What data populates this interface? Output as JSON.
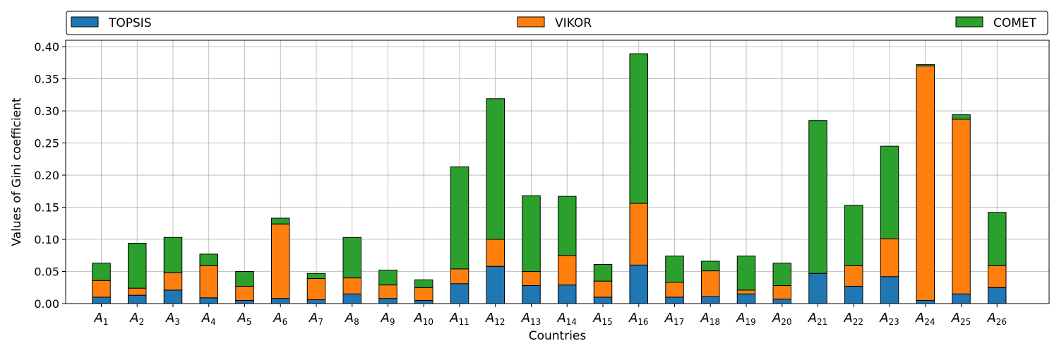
{
  "chart_data": {
    "type": "bar",
    "stacked": true,
    "categories": [
      "A1",
      "A2",
      "A3",
      "A4",
      "A5",
      "A6",
      "A7",
      "A8",
      "A9",
      "A10",
      "A11",
      "A12",
      "A13",
      "A14",
      "A15",
      "A16",
      "A17",
      "A18",
      "A19",
      "A20",
      "A21",
      "A22",
      "A23",
      "A24",
      "A25",
      "A26"
    ],
    "category_labels": [
      {
        "base": "A",
        "sub": "1"
      },
      {
        "base": "A",
        "sub": "2"
      },
      {
        "base": "A",
        "sub": "3"
      },
      {
        "base": "A",
        "sub": "4"
      },
      {
        "base": "A",
        "sub": "5"
      },
      {
        "base": "A",
        "sub": "6"
      },
      {
        "base": "A",
        "sub": "7"
      },
      {
        "base": "A",
        "sub": "8"
      },
      {
        "base": "A",
        "sub": "9"
      },
      {
        "base": "A",
        "sub": "10"
      },
      {
        "base": "A",
        "sub": "11"
      },
      {
        "base": "A",
        "sub": "12"
      },
      {
        "base": "A",
        "sub": "13"
      },
      {
        "base": "A",
        "sub": "14"
      },
      {
        "base": "A",
        "sub": "15"
      },
      {
        "base": "A",
        "sub": "16"
      },
      {
        "base": "A",
        "sub": "17"
      },
      {
        "base": "A",
        "sub": "18"
      },
      {
        "base": "A",
        "sub": "19"
      },
      {
        "base": "A",
        "sub": "20"
      },
      {
        "base": "A",
        "sub": "21"
      },
      {
        "base": "A",
        "sub": "22"
      },
      {
        "base": "A",
        "sub": "23"
      },
      {
        "base": "A",
        "sub": "24"
      },
      {
        "base": "A",
        "sub": "25"
      },
      {
        "base": "A",
        "sub": "26"
      }
    ],
    "series": [
      {
        "name": "TOPSIS",
        "color": "#1f77b4",
        "values": [
          0.01,
          0.013,
          0.021,
          0.009,
          0.005,
          0.008,
          0.006,
          0.015,
          0.008,
          0.005,
          0.031,
          0.058,
          0.028,
          0.029,
          0.01,
          0.06,
          0.01,
          0.011,
          0.015,
          0.007,
          0.047,
          0.027,
          0.042,
          0.005,
          0.015,
          0.025
        ]
      },
      {
        "name": "VIKOR",
        "color": "#ff7f0e",
        "values": [
          0.026,
          0.011,
          0.027,
          0.05,
          0.022,
          0.116,
          0.033,
          0.025,
          0.021,
          0.02,
          0.023,
          0.042,
          0.022,
          0.046,
          0.025,
          0.096,
          0.023,
          0.04,
          0.006,
          0.021,
          0.0,
          0.032,
          0.059,
          0.365,
          0.272,
          0.034
        ]
      },
      {
        "name": "COMET",
        "color": "#2ca02c",
        "values": [
          0.027,
          0.07,
          0.055,
          0.018,
          0.023,
          0.009,
          0.008,
          0.063,
          0.023,
          0.012,
          0.159,
          0.219,
          0.118,
          0.092,
          0.026,
          0.233,
          0.041,
          0.015,
          0.053,
          0.035,
          0.238,
          0.094,
          0.144,
          0.002,
          0.007,
          0.083
        ]
      }
    ],
    "xlabel": "Countries",
    "ylabel": "Values of Gini coefficient",
    "ylim": [
      0,
      0.41
    ],
    "yticks": [
      "0.00",
      "0.05",
      "0.10",
      "0.15",
      "0.20",
      "0.25",
      "0.30",
      "0.35",
      "0.40"
    ],
    "ytick_values": [
      0,
      0.05,
      0.1,
      0.15,
      0.2,
      0.25,
      0.3,
      0.35,
      0.4
    ],
    "grid": true,
    "legend_position": "top"
  }
}
